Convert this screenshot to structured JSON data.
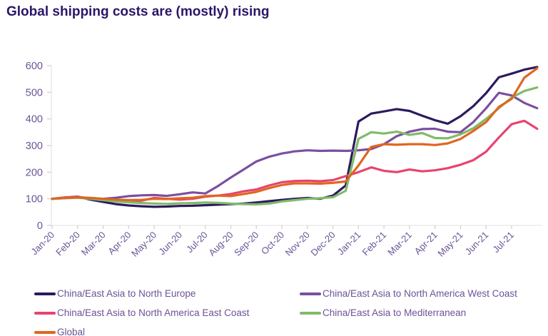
{
  "title": "Global shipping costs are (mostly) rising",
  "colors": {
    "title_text": "#2b1668",
    "axis_text": "#6b5396",
    "axis_line": "#e6e6e6",
    "tick_line": "#cfcfcf",
    "background": "#ffffff"
  },
  "chart_data": {
    "type": "line",
    "title": "Global shipping costs are (mostly) rising",
    "xlabel": "",
    "ylabel": "",
    "ylim": [
      0,
      600
    ],
    "y_ticks": [
      0,
      100,
      200,
      300,
      400,
      500,
      600
    ],
    "grid": false,
    "legend_position": "bottom",
    "x_note": "index units: 0 = Jan-20 tick, 18 = Jul-21 tick, 19 = end of plotted weekly data",
    "x_tick_labels": [
      "Jan-20",
      "Feb-20",
      "Mar-20",
      "Apr-20",
      "May-20",
      "Jun-20",
      "Jul-20",
      "Aug-20",
      "Sep-20",
      "Oct-20",
      "Nov-20",
      "Dec-20",
      "Jan-21",
      "Feb-21",
      "Mar-21",
      "Apr-21",
      "May-21",
      "Jun-21",
      "Jul-21"
    ],
    "x": [
      0,
      0.5,
      1,
      1.5,
      2,
      2.5,
      3,
      3.5,
      4,
      4.5,
      5,
      5.5,
      6,
      6.5,
      7,
      7.5,
      8,
      8.5,
      9,
      9.5,
      10,
      10.5,
      11,
      11.5,
      12,
      12.5,
      13,
      13.5,
      14,
      14.5,
      15,
      15.5,
      16,
      16.5,
      17,
      17.5,
      18,
      18.5,
      19
    ],
    "series": [
      {
        "name": "China/East Asia to North Europe",
        "color": "#2d1a5e",
        "values": [
          100,
          105,
          108,
          97,
          88,
          80,
          75,
          72,
          70,
          71,
          73,
          74,
          76,
          78,
          80,
          82,
          86,
          91,
          96,
          100,
          103,
          100,
          112,
          150,
          390,
          420,
          428,
          437,
          430,
          412,
          395,
          382,
          410,
          448,
          497,
          556,
          570,
          585,
          595
        ]
      },
      {
        "name": "China/East Asia to North America West Coast",
        "color": "#7b4fa0",
        "values": [
          100,
          103,
          105,
          103,
          100,
          104,
          110,
          113,
          114,
          111,
          117,
          124,
          120,
          148,
          180,
          210,
          240,
          258,
          270,
          278,
          282,
          280,
          281,
          280,
          282,
          287,
          305,
          335,
          352,
          362,
          363,
          352,
          350,
          388,
          440,
          498,
          488,
          460,
          440
        ]
      },
      {
        "name": "China/East Asia to North America East Coast",
        "color": "#e8436e",
        "values": [
          100,
          105,
          107,
          102,
          97,
          93,
          91,
          93,
          103,
          100,
          97,
          100,
          108,
          112,
          118,
          128,
          135,
          150,
          162,
          167,
          168,
          166,
          170,
          185,
          200,
          218,
          205,
          200,
          210,
          203,
          207,
          215,
          228,
          245,
          277,
          330,
          380,
          393,
          363
        ]
      },
      {
        "name": "China/East Asia to Mediterranean",
        "color": "#7fbb6a",
        "values": [
          100,
          102,
          104,
          100,
          95,
          90,
          87,
          84,
          82,
          81,
          83,
          84,
          86,
          85,
          82,
          80,
          79,
          82,
          90,
          95,
          100,
          102,
          106,
          130,
          325,
          350,
          345,
          352,
          340,
          347,
          328,
          327,
          342,
          365,
          400,
          440,
          480,
          505,
          518
        ]
      },
      {
        "name": "Global",
        "color": "#e0661f",
        "values": [
          100,
          103,
          105,
          103,
          100,
          97,
          95,
          96,
          100,
          99,
          102,
          104,
          110,
          112,
          110,
          118,
          126,
          140,
          152,
          158,
          158,
          157,
          160,
          165,
          225,
          295,
          305,
          303,
          305,
          305,
          302,
          308,
          325,
          355,
          388,
          445,
          475,
          555,
          590
        ]
      }
    ]
  }
}
